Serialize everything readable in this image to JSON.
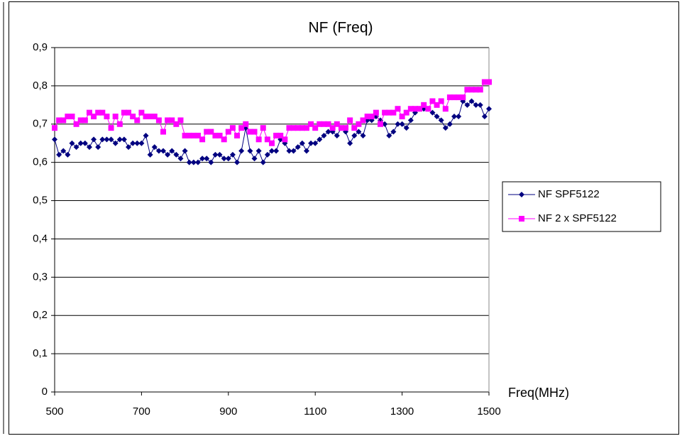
{
  "chart_data": {
    "type": "line",
    "title": "NF (Freq)",
    "xlabel": "Freq(MHz)",
    "x": [
      500,
      510,
      520,
      530,
      540,
      550,
      560,
      570,
      580,
      590,
      600,
      610,
      620,
      630,
      640,
      650,
      660,
      670,
      680,
      690,
      700,
      710,
      720,
      730,
      740,
      750,
      760,
      770,
      780,
      790,
      800,
      810,
      820,
      830,
      840,
      850,
      860,
      870,
      880,
      890,
      900,
      910,
      920,
      930,
      940,
      950,
      960,
      970,
      980,
      990,
      1000,
      1010,
      1020,
      1030,
      1040,
      1050,
      1060,
      1070,
      1080,
      1090,
      1100,
      1110,
      1120,
      1130,
      1140,
      1150,
      1160,
      1170,
      1180,
      1190,
      1200,
      1210,
      1220,
      1230,
      1240,
      1250,
      1260,
      1270,
      1280,
      1290,
      1300,
      1310,
      1320,
      1330,
      1340,
      1350,
      1360,
      1370,
      1380,
      1390,
      1400,
      1410,
      1420,
      1430,
      1440,
      1450,
      1460,
      1470,
      1480,
      1490,
      1500
    ],
    "series": [
      {
        "name": "NF SPF5122",
        "color": "#000080",
        "marker": "diamond",
        "values": [
          0.66,
          0.62,
          0.63,
          0.62,
          0.65,
          0.64,
          0.65,
          0.65,
          0.64,
          0.66,
          0.64,
          0.66,
          0.66,
          0.66,
          0.65,
          0.66,
          0.66,
          0.64,
          0.65,
          0.65,
          0.65,
          0.67,
          0.62,
          0.64,
          0.63,
          0.63,
          0.62,
          0.63,
          0.62,
          0.61,
          0.63,
          0.6,
          0.6,
          0.6,
          0.61,
          0.61,
          0.6,
          0.62,
          0.62,
          0.61,
          0.61,
          0.62,
          0.6,
          0.63,
          0.69,
          0.63,
          0.61,
          0.63,
          0.6,
          0.62,
          0.63,
          0.63,
          0.66,
          0.65,
          0.63,
          0.63,
          0.64,
          0.65,
          0.63,
          0.65,
          0.65,
          0.66,
          0.67,
          0.68,
          0.68,
          0.67,
          0.69,
          0.68,
          0.65,
          0.67,
          0.68,
          0.67,
          0.71,
          0.71,
          0.72,
          0.71,
          0.7,
          0.67,
          0.68,
          0.7,
          0.7,
          0.69,
          0.71,
          0.73,
          0.74,
          0.74,
          0.74,
          0.73,
          0.72,
          0.71,
          0.69,
          0.7,
          0.72,
          0.72,
          0.76,
          0.75,
          0.76,
          0.75,
          0.75,
          0.72,
          0.74
        ]
      },
      {
        "name": "NF 2 x SPF5122",
        "color": "#ff00ff",
        "marker": "square",
        "values": [
          0.69,
          0.71,
          0.71,
          0.72,
          0.72,
          0.7,
          0.71,
          0.71,
          0.73,
          0.72,
          0.73,
          0.73,
          0.72,
          0.69,
          0.72,
          0.7,
          0.73,
          0.73,
          0.72,
          0.71,
          0.73,
          0.72,
          0.72,
          0.72,
          0.71,
          0.68,
          0.71,
          0.71,
          0.7,
          0.71,
          0.67,
          0.67,
          0.67,
          0.67,
          0.66,
          0.68,
          0.68,
          0.67,
          0.67,
          0.66,
          0.68,
          0.69,
          0.67,
          0.69,
          0.7,
          0.68,
          0.68,
          0.66,
          0.69,
          0.66,
          0.65,
          0.67,
          0.67,
          0.66,
          0.69,
          0.69,
          0.69,
          0.69,
          0.69,
          0.7,
          0.69,
          0.7,
          0.7,
          0.7,
          0.69,
          0.7,
          0.69,
          0.69,
          0.71,
          0.69,
          0.7,
          0.71,
          0.72,
          0.72,
          0.73,
          0.7,
          0.73,
          0.73,
          0.73,
          0.74,
          0.72,
          0.73,
          0.74,
          0.74,
          0.74,
          0.75,
          0.74,
          0.76,
          0.75,
          0.76,
          0.74,
          0.77,
          0.77,
          0.77,
          0.77,
          0.79,
          0.79,
          0.79,
          0.79,
          0.81,
          0.81
        ]
      }
    ],
    "xlim": [
      500,
      1500
    ],
    "xticks": [
      500,
      700,
      900,
      1100,
      1300,
      1500
    ],
    "ylim": [
      0,
      0.9
    ],
    "yticks": [
      0,
      {
        "value": 0.1,
        "label": "0,1"
      },
      {
        "value": 0.2,
        "label": "0,2"
      },
      {
        "value": 0.3,
        "label": "0,3"
      },
      {
        "value": 0.4,
        "label": "0,4"
      },
      {
        "value": 0.5,
        "label": "0,5"
      },
      {
        "value": 0.6,
        "label": "0,6"
      },
      {
        "value": 0.7,
        "label": "0,7"
      },
      {
        "value": 0.8,
        "label": "0,8"
      },
      {
        "value": 0.9,
        "label": "0,9"
      }
    ],
    "grid": true,
    "legend": "right"
  }
}
